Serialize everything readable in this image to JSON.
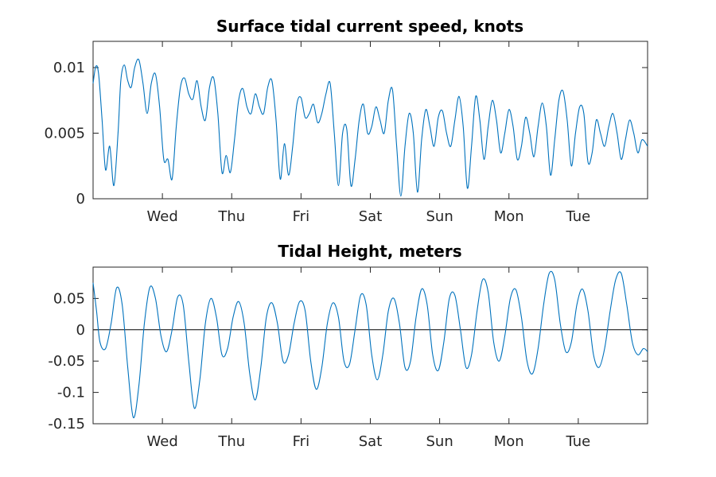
{
  "chart_data": [
    {
      "type": "line",
      "title": "Surface tidal current speed, knots",
      "xlabel": "",
      "ylabel": "",
      "x_tick_labels": [
        "Wed",
        "Thu",
        "Fri",
        "Sat",
        "Sun",
        "Mon",
        "Tue"
      ],
      "y_ticks": [
        0,
        0.005,
        0.01
      ],
      "y_tick_labels": [
        "0",
        "0.005",
        "0.01"
      ],
      "ylim": [
        0,
        0.012
      ],
      "xlim": [
        0,
        8
      ],
      "series": [
        {
          "color": "#0072bd",
          "x": [
            0.0,
            0.04,
            0.08,
            0.13,
            0.18,
            0.24,
            0.3,
            0.36,
            0.4,
            0.45,
            0.5,
            0.55,
            0.6,
            0.66,
            0.72,
            0.78,
            0.84,
            0.9,
            0.96,
            1.02,
            1.08,
            1.14,
            1.2,
            1.26,
            1.32,
            1.38,
            1.44,
            1.5,
            1.56,
            1.62,
            1.68,
            1.74,
            1.8,
            1.86,
            1.92,
            1.98,
            2.04,
            2.1,
            2.16,
            2.22,
            2.28,
            2.34,
            2.4,
            2.46,
            2.52,
            2.58,
            2.64,
            2.7,
            2.76,
            2.82,
            2.88,
            2.94,
            3.0,
            3.06,
            3.12,
            3.18,
            3.24,
            3.3,
            3.36,
            3.42,
            3.48,
            3.54,
            3.6,
            3.66,
            3.72,
            3.78,
            3.84,
            3.9,
            3.96,
            4.02,
            4.08,
            4.14,
            4.2,
            4.26,
            4.32,
            4.38,
            4.44,
            4.5,
            4.56,
            4.62,
            4.68,
            4.74,
            4.8,
            4.86,
            4.92,
            4.98,
            5.04,
            5.1,
            5.16,
            5.22,
            5.28,
            5.34,
            5.4,
            5.46,
            5.52,
            5.58,
            5.64,
            5.7,
            5.76,
            5.82,
            5.88,
            5.94,
            6.0,
            6.06,
            6.12,
            6.18,
            6.24,
            6.3,
            6.36,
            6.42,
            6.48,
            6.54,
            6.6,
            6.66,
            6.72,
            6.78,
            6.84,
            6.9,
            6.96,
            7.02,
            7.08,
            7.14,
            7.2,
            7.26,
            7.32,
            7.38,
            7.44,
            7.5,
            7.56,
            7.62,
            7.68,
            7.74,
            7.8,
            7.86,
            7.92,
            8.0
          ],
          "y": [
            0.0088,
            0.0101,
            0.0095,
            0.006,
            0.0022,
            0.004,
            0.001,
            0.005,
            0.009,
            0.0102,
            0.009,
            0.0085,
            0.01,
            0.0106,
            0.0088,
            0.0065,
            0.0088,
            0.0095,
            0.007,
            0.003,
            0.003,
            0.0015,
            0.0055,
            0.0085,
            0.0092,
            0.008,
            0.0076,
            0.009,
            0.007,
            0.006,
            0.0085,
            0.0092,
            0.0065,
            0.002,
            0.0033,
            0.002,
            0.0045,
            0.0075,
            0.0084,
            0.007,
            0.0065,
            0.008,
            0.007,
            0.0065,
            0.0085,
            0.009,
            0.006,
            0.0015,
            0.0042,
            0.0018,
            0.004,
            0.0072,
            0.0077,
            0.0062,
            0.0065,
            0.0072,
            0.0058,
            0.0065,
            0.008,
            0.0088,
            0.005,
            0.001,
            0.005,
            0.0053,
            0.001,
            0.003,
            0.006,
            0.0072,
            0.005,
            0.0055,
            0.007,
            0.006,
            0.005,
            0.0075,
            0.0083,
            0.004,
            0.0002,
            0.004,
            0.0065,
            0.005,
            0.0005,
            0.0045,
            0.0068,
            0.0055,
            0.004,
            0.0062,
            0.0067,
            0.005,
            0.004,
            0.006,
            0.0078,
            0.0055,
            0.0008,
            0.004,
            0.0078,
            0.006,
            0.003,
            0.0055,
            0.0075,
            0.006,
            0.0035,
            0.005,
            0.0068,
            0.0055,
            0.003,
            0.004,
            0.0062,
            0.005,
            0.0032,
            0.0055,
            0.0073,
            0.0055,
            0.0018,
            0.0045,
            0.0075,
            0.0082,
            0.006,
            0.0025,
            0.005,
            0.007,
            0.0065,
            0.0028,
            0.0035,
            0.006,
            0.005,
            0.004,
            0.0055,
            0.0065,
            0.005,
            0.003,
            0.0045,
            0.006,
            0.005,
            0.0035,
            0.0045,
            0.004
          ]
        }
      ]
    },
    {
      "type": "line",
      "title": "Tidal Height, meters",
      "xlabel": "",
      "ylabel": "",
      "x_tick_labels": [
        "Wed",
        "Thu",
        "Fri",
        "Sat",
        "Sun",
        "Mon",
        "Tue"
      ],
      "y_ticks": [
        -0.15,
        -0.1,
        -0.05,
        0,
        0.05
      ],
      "y_tick_labels": [
        "-0.15",
        "-0.1",
        "-0.05",
        "0",
        "0.05"
      ],
      "ylim": [
        -0.15,
        0.1
      ],
      "xlim": [
        0,
        8
      ],
      "zero_line": true,
      "series": [
        {
          "color": "#0072bd",
          "x": [
            0.0,
            0.05,
            0.1,
            0.18,
            0.26,
            0.34,
            0.42,
            0.5,
            0.58,
            0.66,
            0.74,
            0.82,
            0.9,
            0.98,
            1.06,
            1.14,
            1.22,
            1.3,
            1.38,
            1.46,
            1.54,
            1.62,
            1.7,
            1.78,
            1.86,
            1.94,
            2.02,
            2.1,
            2.18,
            2.26,
            2.34,
            2.42,
            2.5,
            2.58,
            2.66,
            2.74,
            2.82,
            2.9,
            2.98,
            3.06,
            3.14,
            3.22,
            3.3,
            3.38,
            3.46,
            3.54,
            3.62,
            3.7,
            3.78,
            3.86,
            3.94,
            4.02,
            4.1,
            4.18,
            4.26,
            4.34,
            4.42,
            4.5,
            4.58,
            4.66,
            4.74,
            4.82,
            4.9,
            4.98,
            5.06,
            5.14,
            5.22,
            5.3,
            5.38,
            5.46,
            5.54,
            5.62,
            5.7,
            5.78,
            5.86,
            5.94,
            6.02,
            6.1,
            6.18,
            6.26,
            6.34,
            6.42,
            6.5,
            6.58,
            6.66,
            6.74,
            6.82,
            6.9,
            6.98,
            7.06,
            7.14,
            7.22,
            7.3,
            7.38,
            7.46,
            7.54,
            7.62,
            7.7,
            7.78,
            7.86,
            7.94,
            8.0
          ],
          "y": [
            0.075,
            0.03,
            -0.02,
            -0.03,
            0.01,
            0.067,
            0.04,
            -0.06,
            -0.14,
            -0.09,
            0.01,
            0.068,
            0.05,
            -0.01,
            -0.035,
            0.0,
            0.052,
            0.04,
            -0.05,
            -0.125,
            -0.08,
            0.01,
            0.05,
            0.02,
            -0.04,
            -0.03,
            0.02,
            0.045,
            0.01,
            -0.07,
            -0.112,
            -0.06,
            0.02,
            0.043,
            0.01,
            -0.05,
            -0.04,
            0.01,
            0.045,
            0.03,
            -0.05,
            -0.095,
            -0.06,
            0.01,
            0.043,
            0.02,
            -0.05,
            -0.055,
            0.0,
            0.055,
            0.04,
            -0.04,
            -0.08,
            -0.04,
            0.03,
            0.05,
            0.01,
            -0.06,
            -0.05,
            0.02,
            0.065,
            0.04,
            -0.04,
            -0.065,
            -0.02,
            0.05,
            0.055,
            0.0,
            -0.06,
            -0.04,
            0.03,
            0.08,
            0.06,
            -0.02,
            -0.05,
            -0.01,
            0.05,
            0.064,
            0.02,
            -0.05,
            -0.07,
            -0.03,
            0.04,
            0.09,
            0.08,
            0.01,
            -0.035,
            -0.02,
            0.04,
            0.065,
            0.03,
            -0.04,
            -0.06,
            -0.03,
            0.03,
            0.08,
            0.09,
            0.04,
            -0.02,
            -0.04,
            -0.03,
            -0.035
          ]
        }
      ]
    }
  ]
}
